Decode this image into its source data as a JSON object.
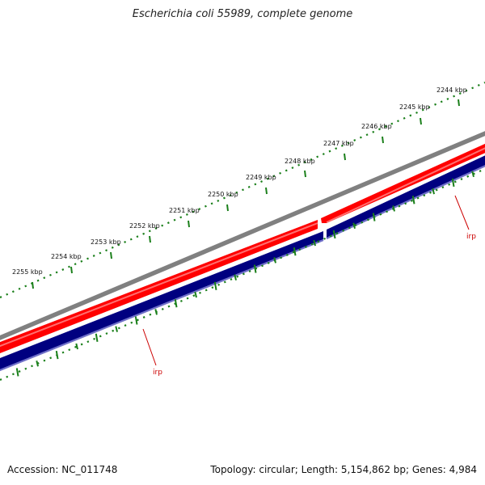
{
  "title": "Escherichia coli 55989, complete genome",
  "accession": "Accession: NC_011748",
  "summary": "Topology: circular; Length: 5,154,862 bp; Genes: 4,984",
  "colors": {
    "backbone": "#808080",
    "forward_gene": "#ff0000",
    "reverse_gene": "#000080",
    "reverse_edge": "#6f6fc8",
    "ruler": "#1a7f1a",
    "feature_label": "#cc0000"
  },
  "ruler": {
    "unit": "kbp",
    "labels": [
      "2244 kbp",
      "2245 kbp",
      "2246 kbp",
      "2247 kbp",
      "2248 kbp",
      "2249 kbp",
      "2250 kbp",
      "2251 kbp",
      "2252 kbp",
      "2253 kbp",
      "2254 kbp",
      "2255 kbp"
    ]
  },
  "features": [
    {
      "label": "irp",
      "strand": "forward"
    },
    {
      "label": "irp",
      "strand": "reverse"
    }
  ]
}
